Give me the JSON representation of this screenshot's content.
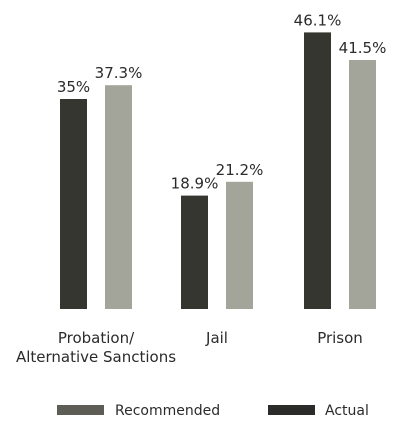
{
  "chart_data": {
    "type": "bar",
    "categories": [
      "Probation/\nAlternative Sanctions",
      "Jail",
      "Prison"
    ],
    "series": [
      {
        "name": "Actual",
        "color": "#363630",
        "values": [
          35.0,
          18.9,
          46.1
        ],
        "labels": [
          "35%",
          "18.9%",
          "46.1%"
        ]
      },
      {
        "name": "Recommended",
        "color": "#a3a59b",
        "values": [
          37.3,
          21.2,
          41.5
        ],
        "labels": [
          "37.3%",
          "21.2%",
          "41.5%"
        ]
      }
    ],
    "legend": [
      {
        "name": "Recommended",
        "color": "#5d5d55"
      },
      {
        "name": "Actual",
        "color": "#2b2b29"
      }
    ],
    "ylim": [
      0,
      50
    ],
    "grid": false,
    "legend_position": "bottom",
    "title": "",
    "xlabel": "",
    "ylabel": ""
  }
}
